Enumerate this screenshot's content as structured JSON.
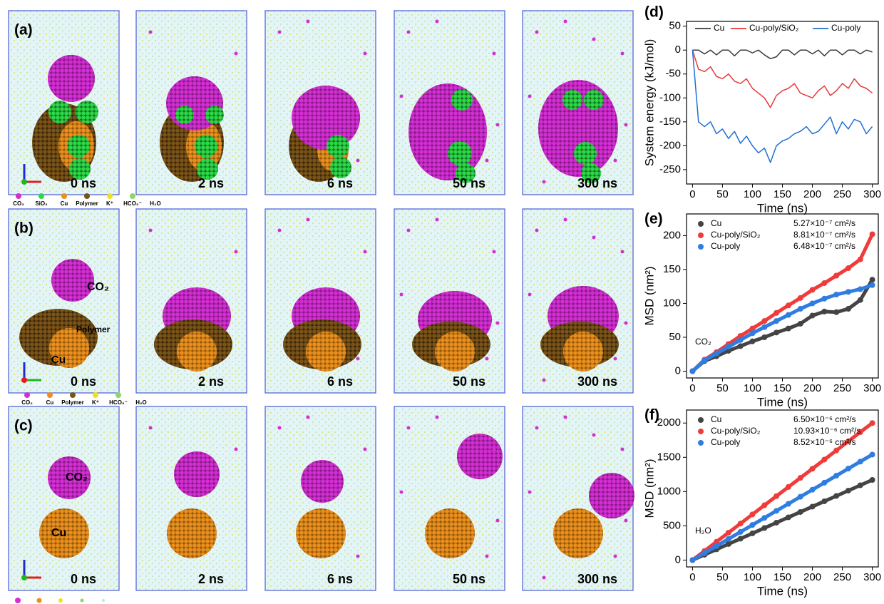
{
  "snapshots": {
    "times": [
      "0 ns",
      "2 ns",
      "6 ns",
      "50 ns",
      "300 ns"
    ],
    "rows": [
      {
        "label": "(a)",
        "legend": [
          "CO₂",
          "SiO₂",
          "Cu",
          "Polymer",
          "K⁺",
          "HCO₃⁻",
          "H₂O"
        ],
        "annotations": []
      },
      {
        "label": "(b)",
        "legend": [
          "CO₂",
          "Cu",
          "Polymer",
          "K⁺",
          "HCO₃⁻",
          "H₂O"
        ],
        "annotations": [
          "CO₂",
          "Polymer",
          "Cu"
        ]
      },
      {
        "label": "(c)",
        "legend": [],
        "annotations": [
          "CO₂",
          "Cu"
        ]
      }
    ]
  },
  "chart_data": [
    {
      "type": "line",
      "panel": "(d)",
      "xlabel": "Time (ns)",
      "ylabel": "System energy (kJ/mol)",
      "xlim": [
        -10,
        310
      ],
      "ylim": [
        -280,
        60
      ],
      "xticks": [
        0,
        50,
        100,
        150,
        200,
        250,
        300
      ],
      "yticks": [
        -250,
        -200,
        -150,
        -100,
        -50,
        0,
        50
      ],
      "legend": "upper center",
      "markers": false,
      "x": [
        0,
        10,
        20,
        30,
        40,
        50,
        60,
        70,
        80,
        90,
        100,
        110,
        120,
        130,
        140,
        150,
        160,
        170,
        180,
        190,
        200,
        210,
        220,
        230,
        240,
        250,
        260,
        270,
        280,
        290,
        300
      ],
      "series": [
        {
          "name": "Cu",
          "color": "#3a3a3a",
          "values": [
            0,
            0,
            -8,
            0,
            -10,
            0,
            0,
            -12,
            0,
            0,
            -6,
            0,
            -10,
            -18,
            -14,
            0,
            0,
            -10,
            0,
            0,
            -8,
            0,
            -12,
            0,
            0,
            -10,
            0,
            0,
            -8,
            0,
            -4
          ]
        },
        {
          "name": "Cu-poly/SiO₂",
          "color": "#e8393a",
          "values": [
            0,
            -40,
            -45,
            -35,
            -55,
            -60,
            -50,
            -65,
            -70,
            -60,
            -80,
            -90,
            -100,
            -120,
            -95,
            -85,
            -80,
            -70,
            -90,
            -95,
            -100,
            -85,
            -75,
            -95,
            -85,
            -70,
            -80,
            -60,
            -75,
            -80,
            -90
          ]
        },
        {
          "name": "Cu-poly",
          "color": "#1f6fd6",
          "values": [
            0,
            -150,
            -160,
            -150,
            -175,
            -165,
            -185,
            -170,
            -195,
            -180,
            -200,
            -215,
            -205,
            -235,
            -200,
            -190,
            -185,
            -175,
            -170,
            -160,
            -175,
            -170,
            -155,
            -140,
            -175,
            -150,
            -165,
            -145,
            -150,
            -175,
            -160
          ]
        }
      ]
    },
    {
      "type": "line",
      "panel": "(e)",
      "xlabel": "Time (ns)",
      "ylabel": "MSD (nm²)",
      "annotation": "CO₂",
      "xlim": [
        -10,
        310
      ],
      "ylim": [
        -10,
        232
      ],
      "xticks": [
        0,
        50,
        100,
        150,
        200,
        250,
        300
      ],
      "yticks": [
        0,
        50,
        100,
        150,
        200
      ],
      "legend": "upper left",
      "markers": true,
      "x": [
        0,
        20,
        40,
        60,
        80,
        100,
        120,
        140,
        160,
        180,
        200,
        220,
        240,
        260,
        280,
        300
      ],
      "series": [
        {
          "name": "Cu",
          "color": "#444444",
          "diffusion": "5.27×10⁻⁷ cm²/s",
          "values": [
            0,
            15,
            22,
            30,
            37,
            44,
            50,
            57,
            63,
            70,
            82,
            88,
            87,
            92,
            105,
            135
          ]
        },
        {
          "name": "Cu-poly/SiO₂",
          "color": "#f03b3b",
          "diffusion": "8.81×10⁻⁷ cm²/s",
          "values": [
            0,
            17,
            28,
            40,
            52,
            63,
            74,
            86,
            97,
            108,
            120,
            130,
            141,
            152,
            165,
            202
          ]
        },
        {
          "name": "Cu-poly",
          "color": "#2f7de1",
          "diffusion": "6.48×10⁻⁷ cm²/s",
          "values": [
            0,
            16,
            26,
            36,
            46,
            56,
            65,
            74,
            83,
            92,
            100,
            107,
            113,
            117,
            121,
            127
          ]
        }
      ]
    },
    {
      "type": "line",
      "panel": "(f)",
      "xlabel": "Time (ns)",
      "ylabel": "MSD (nm²)",
      "annotation": "H₂O",
      "xlim": [
        -10,
        310
      ],
      "ylim": [
        -100,
        2190
      ],
      "xticks": [
        0,
        50,
        100,
        150,
        200,
        250,
        300
      ],
      "yticks": [
        0,
        500,
        1000,
        1500,
        2000
      ],
      "legend": "upper left",
      "markers": true,
      "x": [
        0,
        20,
        40,
        60,
        80,
        100,
        120,
        140,
        160,
        180,
        200,
        220,
        240,
        260,
        280,
        300
      ],
      "series": [
        {
          "name": "Cu",
          "color": "#444444",
          "diffusion": "6.50×10⁻⁶ cm²/s",
          "values": [
            0,
            78,
            156,
            234,
            312,
            390,
            468,
            546,
            624,
            702,
            780,
            858,
            936,
            1014,
            1092,
            1170
          ]
        },
        {
          "name": "Cu-poly/SiO₂",
          "color": "#f03b3b",
          "diffusion": "10.93×10⁻⁶ cm²/s",
          "values": [
            0,
            133,
            267,
            400,
            533,
            667,
            800,
            933,
            1067,
            1200,
            1333,
            1467,
            1600,
            1733,
            1867,
            2000
          ]
        },
        {
          "name": "Cu-poly",
          "color": "#2f7de1",
          "diffusion": "8.52×10⁻⁶ cm²/s",
          "values": [
            0,
            103,
            205,
            308,
            411,
            513,
            616,
            719,
            821,
            924,
            1027,
            1129,
            1232,
            1335,
            1437,
            1540
          ]
        }
      ]
    }
  ]
}
